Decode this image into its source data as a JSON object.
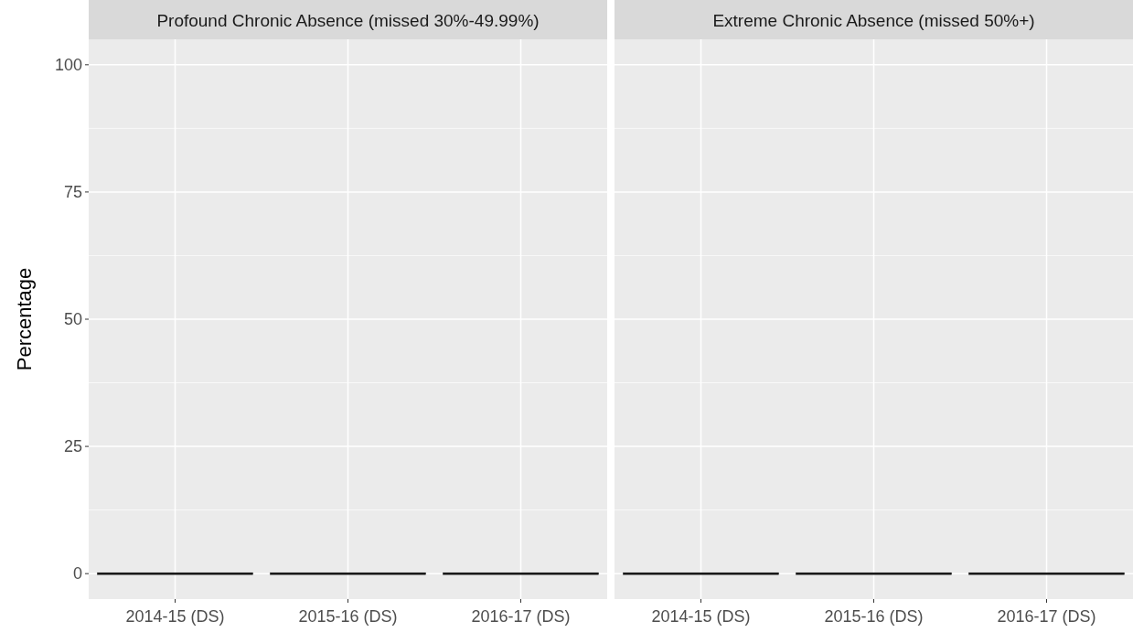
{
  "chart_data": [
    {
      "type": "box",
      "title": "Profound Chronic Absence (missed 30%-49.99%)",
      "ylabel": "Percentage",
      "categories": [
        "2014-15 (DS)",
        "2015-16 (DS)",
        "2016-17 (DS)"
      ],
      "boxes": [
        {
          "low": 0,
          "q1": 0,
          "median": 0,
          "q3": 0,
          "high": 0
        },
        {
          "low": 0,
          "q1": 0,
          "median": 0,
          "q3": 0,
          "high": 0
        },
        {
          "low": 0,
          "q1": 0,
          "median": 0,
          "q3": 0,
          "high": 0
        }
      ],
      "ylim": [
        -5,
        105
      ],
      "yticks": [
        0,
        25,
        50,
        75,
        100
      ],
      "grid": true
    },
    {
      "type": "box",
      "title": "Extreme Chronic Absence (missed 50%+)",
      "categories": [
        "2014-15 (DS)",
        "2015-16 (DS)",
        "2016-17 (DS)"
      ],
      "boxes": [
        {
          "low": 0,
          "q1": 0,
          "median": 0,
          "q3": 0,
          "high": 0
        },
        {
          "low": 0,
          "q1": 0,
          "median": 0,
          "q3": 0,
          "high": 0
        },
        {
          "low": 0,
          "q1": 0,
          "median": 0,
          "q3": 0,
          "high": 0
        }
      ],
      "ylim": [
        -5,
        105
      ],
      "yticks": [
        0,
        25,
        50,
        75,
        100
      ],
      "grid": true,
      "tick_labels": "x"
    }
  ]
}
